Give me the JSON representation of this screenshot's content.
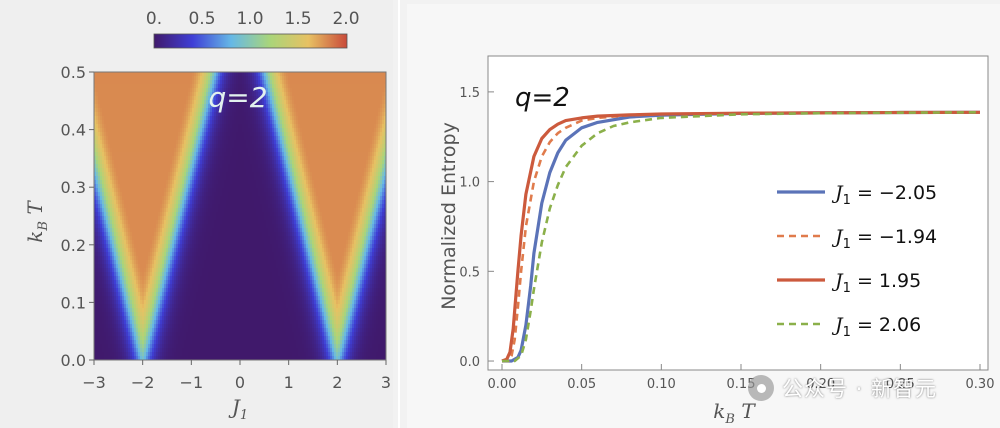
{
  "chart_data": [
    {
      "type": "heatmap",
      "title": "q=2",
      "xlabel": "J_1",
      "ylabel": "k_B T",
      "xlim": [
        -3,
        3
      ],
      "ylim": [
        0,
        0.5
      ],
      "xticks": [
        "−3",
        "−2",
        "−1",
        "0",
        "1",
        "2",
        "3"
      ],
      "yticks": [
        "0.0",
        "0.1",
        "0.2",
        "0.3",
        "0.4",
        "0.5"
      ],
      "colorbar": {
        "range": [
          0,
          2
        ],
        "ticks": [
          "0.",
          "0.5",
          "1.0",
          "1.5",
          "2.0"
        ],
        "colors": [
          "#40196b",
          "#3f3fd6",
          "#66b8e6",
          "#a9d57a",
          "#e7c163",
          "#c94a3a"
        ]
      },
      "critical_points": [
        {
          "J": -2,
          "T": 0
        },
        {
          "J": 2,
          "T": 0
        }
      ]
    },
    {
      "type": "line",
      "title": "q=2",
      "xlabel": "k_B T",
      "ylabel": "Normalized Entropy",
      "xlim": [
        0,
        0.3
      ],
      "ylim": [
        -0.05,
        1.7
      ],
      "xticks": [
        "0.00",
        "0.05",
        "0.10",
        "0.15",
        "0.20",
        "0.25",
        "0.30"
      ],
      "yticks": [
        "0.0",
        "0.5",
        "1.0",
        "1.5"
      ],
      "asymptote": 1.386,
      "series": [
        {
          "name": "= −2.05",
          "color": "#5b73b8",
          "dash": "solid",
          "width": 3.2,
          "x": [
            0.0,
            0.006,
            0.01,
            0.012,
            0.015,
            0.018,
            0.02,
            0.025,
            0.03,
            0.035,
            0.04,
            0.05,
            0.06,
            0.08,
            0.1,
            0.15,
            0.2,
            0.25,
            0.3
          ],
          "y": [
            0.0,
            0.0,
            0.02,
            0.06,
            0.2,
            0.42,
            0.6,
            0.88,
            1.05,
            1.16,
            1.23,
            1.3,
            1.33,
            1.36,
            1.37,
            1.38,
            1.383,
            1.385,
            1.386
          ]
        },
        {
          "name": "= −1.94",
          "color": "#e07b4c",
          "dash": "dashed",
          "width": 2.6,
          "x": [
            0.0,
            0.004,
            0.006,
            0.008,
            0.01,
            0.012,
            0.015,
            0.02,
            0.025,
            0.03,
            0.035,
            0.04,
            0.05,
            0.06,
            0.08,
            0.1,
            0.15,
            0.2,
            0.25,
            0.3
          ],
          "y": [
            0.0,
            0.0,
            0.03,
            0.12,
            0.3,
            0.5,
            0.75,
            1.0,
            1.14,
            1.22,
            1.27,
            1.3,
            1.34,
            1.355,
            1.37,
            1.375,
            1.38,
            1.383,
            1.385,
            1.386
          ]
        },
        {
          "name": "= 1.95",
          "color": "#cc5a3d",
          "dash": "solid",
          "width": 3.2,
          "x": [
            0.0,
            0.003,
            0.005,
            0.007,
            0.01,
            0.012,
            0.015,
            0.02,
            0.025,
            0.03,
            0.035,
            0.04,
            0.05,
            0.06,
            0.08,
            0.1,
            0.15,
            0.2,
            0.25,
            0.3
          ],
          "y": [
            0.0,
            0.01,
            0.05,
            0.18,
            0.5,
            0.7,
            0.93,
            1.14,
            1.24,
            1.29,
            1.32,
            1.34,
            1.355,
            1.365,
            1.372,
            1.377,
            1.381,
            1.383,
            1.385,
            1.386
          ]
        },
        {
          "name": "= 2.06",
          "color": "#8bb04a",
          "dash": "dashed",
          "width": 2.6,
          "x": [
            0.0,
            0.008,
            0.012,
            0.015,
            0.018,
            0.02,
            0.025,
            0.03,
            0.035,
            0.04,
            0.05,
            0.06,
            0.07,
            0.08,
            0.1,
            0.15,
            0.2,
            0.25,
            0.3
          ],
          "y": [
            0.0,
            0.0,
            0.03,
            0.12,
            0.28,
            0.4,
            0.66,
            0.85,
            0.98,
            1.08,
            1.2,
            1.27,
            1.31,
            1.33,
            1.355,
            1.375,
            1.381,
            1.384,
            1.386
          ]
        }
      ],
      "legend_symbol": "J",
      "legend_subscript": "1",
      "legend_position": "right"
    }
  ],
  "watermark": {
    "text": "公众号 · 新智元",
    "logo_icon": "chat-bubble-logo-icon"
  }
}
